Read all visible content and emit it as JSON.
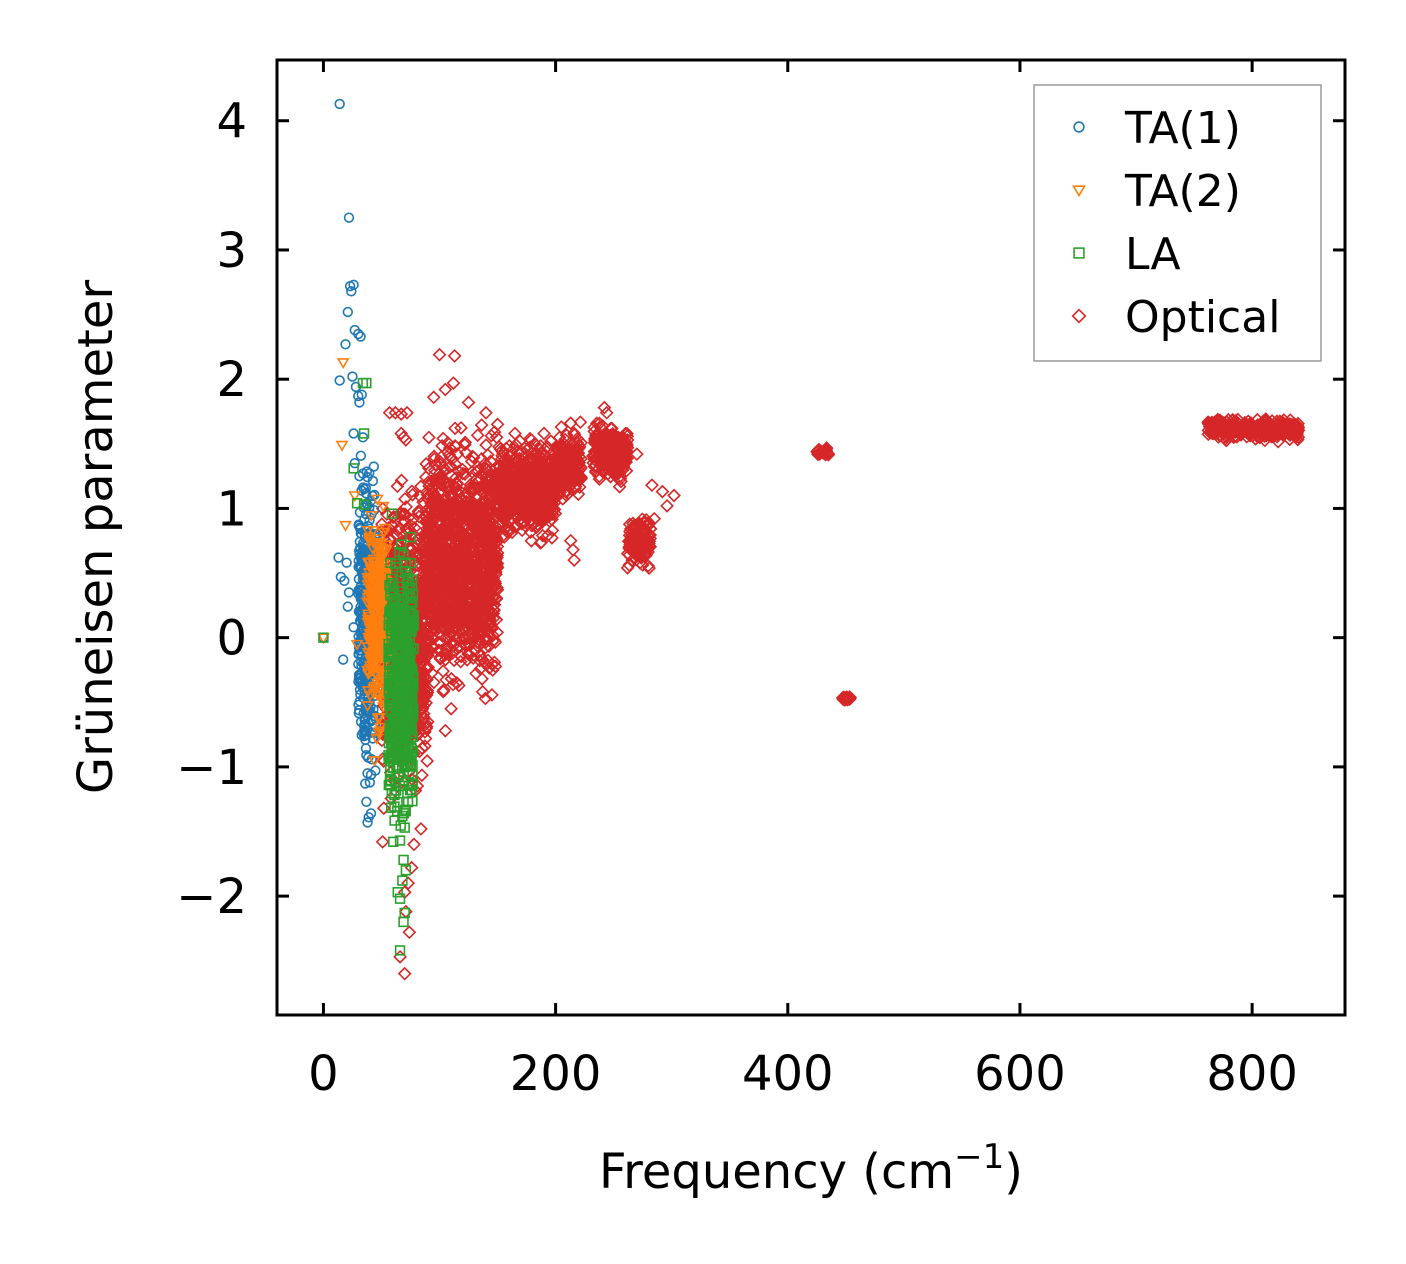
{
  "chart_data": {
    "type": "scatter",
    "title": "",
    "xlabel": "Frequency (cm",
    "xlabel_sup": "−1",
    "xlabel_end": ")",
    "ylabel": "Grüneisen parameter",
    "xlim": [
      -40,
      880
    ],
    "ylim": [
      -2.92,
      4.47
    ],
    "xticks": [
      0,
      200,
      400,
      600,
      800
    ],
    "xtick_labels": [
      "0",
      "200",
      "400",
      "600",
      "800"
    ],
    "yticks": [
      -2,
      -1,
      0,
      1,
      2,
      3,
      4
    ],
    "ytick_labels": [
      "−2",
      "−1",
      "0",
      "1",
      "2",
      "3",
      "4"
    ],
    "grid": false,
    "legend_position": "top-right",
    "series": [
      {
        "name": "TA(1)",
        "marker": "circle",
        "color": "#1f77b4",
        "points": [
          [
            0,
            0
          ],
          [
            14,
            4.13
          ],
          [
            22,
            3.25
          ],
          [
            23,
            2.72
          ],
          [
            24,
            2.68
          ],
          [
            26,
            2.73
          ],
          [
            21,
            2.52
          ],
          [
            19,
            2.27
          ],
          [
            27,
            2.38
          ],
          [
            30,
            2.35
          ],
          [
            32,
            2.33
          ],
          [
            25,
            2.02
          ],
          [
            14,
            1.99
          ],
          [
            28,
            1.94
          ],
          [
            30,
            1.87
          ],
          [
            31,
            1.82
          ],
          [
            33,
            1.88
          ],
          [
            26,
            1.58
          ],
          [
            34,
            1.55
          ],
          [
            27,
            1.35
          ],
          [
            31,
            1.25
          ],
          [
            35,
            1.15
          ],
          [
            13,
            0.62
          ],
          [
            20,
            0.58
          ],
          [
            15,
            0.47
          ],
          [
            18,
            0.44
          ],
          [
            22,
            0.35
          ],
          [
            21,
            0.24
          ],
          [
            17,
            -0.17
          ],
          [
            26,
            0.08
          ],
          [
            33,
            -0.35
          ],
          [
            35,
            -0.68
          ],
          [
            37,
            -0.91
          ],
          [
            38,
            -1.05
          ],
          [
            40,
            -1.12
          ],
          [
            37,
            -1.27
          ],
          [
            38,
            -1.43
          ],
          [
            39,
            -1.39
          ],
          [
            41,
            -1.36
          ]
        ],
        "dense_band": {
          "x_range": [
            30,
            45
          ],
          "y_range": [
            -1.2,
            1.5
          ],
          "count": 420
        }
      },
      {
        "name": "TA(2)",
        "marker": "triangle-down",
        "color": "#ff7f0e",
        "points": [
          [
            0,
            0
          ],
          [
            17,
            2.13
          ],
          [
            16,
            1.49
          ],
          [
            19,
            0.87
          ],
          [
            27,
            1.1
          ],
          [
            29,
            -0.05
          ],
          [
            44,
            -0.95
          ],
          [
            46,
            -0.78
          ],
          [
            49,
            -0.72
          ],
          [
            47,
            -0.62
          ]
        ],
        "dense_band": {
          "x_range": [
            38,
            55
          ],
          "y_range": [
            -0.9,
            1.2
          ],
          "count": 320
        }
      },
      {
        "name": "LA",
        "marker": "square",
        "color": "#2ca02c",
        "points": [
          [
            0,
            0
          ],
          [
            34,
            1.97
          ],
          [
            37,
            1.97
          ],
          [
            35,
            1.58
          ],
          [
            26,
            1.31
          ],
          [
            29,
            1.04
          ],
          [
            35,
            1.03
          ],
          [
            69,
            0.64
          ],
          [
            71,
            0.58
          ],
          [
            67,
            0.72
          ],
          [
            59,
            0.96
          ],
          [
            68,
            -1.38
          ],
          [
            70,
            -1.47
          ],
          [
            66,
            -1.57
          ],
          [
            69,
            -1.72
          ],
          [
            71,
            -1.8
          ],
          [
            66,
            -2.02
          ],
          [
            64,
            -1.97
          ],
          [
            68,
            -1.88
          ],
          [
            70,
            -2.13
          ],
          [
            69,
            -2.2
          ],
          [
            66,
            -2.42
          ]
        ],
        "dense_band": {
          "x_range": [
            56,
            78
          ],
          "y_range": [
            -1.7,
            0.9
          ],
          "count": 520
        }
      },
      {
        "name": "Optical",
        "marker": "diamond",
        "color": "#d62728",
        "points": [
          [
            100,
            2.19
          ],
          [
            113,
            2.18
          ],
          [
            57,
            1.74
          ],
          [
            62,
            1.74
          ],
          [
            67,
            1.73
          ],
          [
            72,
            1.74
          ],
          [
            67,
            1.58
          ],
          [
            69,
            1.55
          ],
          [
            71,
            1.53
          ],
          [
            95,
            1.86
          ],
          [
            105,
            1.92
          ],
          [
            112,
            1.97
          ],
          [
            125,
            1.82
          ],
          [
            140,
            1.74
          ],
          [
            150,
            1.65
          ],
          [
            165,
            1.58
          ],
          [
            178,
            1.54
          ],
          [
            190,
            1.58
          ],
          [
            205,
            1.63
          ],
          [
            213,
            1.66
          ],
          [
            242,
            1.78
          ],
          [
            244,
            1.74
          ],
          [
            254,
            1.55
          ],
          [
            262,
            1.47
          ],
          [
            270,
            1.42
          ],
          [
            283,
            1.18
          ],
          [
            292,
            1.13
          ],
          [
            302,
            1.1
          ],
          [
            296,
            1.02
          ],
          [
            285,
            0.92
          ],
          [
            277,
            0.72
          ],
          [
            266,
            0.6
          ],
          [
            262,
            0.54
          ],
          [
            213,
            0.75
          ],
          [
            215,
            0.68
          ],
          [
            216,
            0.6
          ],
          [
            52,
            -1.32
          ],
          [
            51,
            -1.58
          ],
          [
            84,
            -1.48
          ],
          [
            78,
            -1.6
          ],
          [
            76,
            -1.78
          ],
          [
            73,
            -1.9
          ],
          [
            70,
            -1.97
          ],
          [
            71,
            -2.12
          ],
          [
            74,
            -2.28
          ],
          [
            66,
            -2.47
          ],
          [
            70,
            -2.6
          ],
          [
            120,
            0.2
          ],
          [
            130,
            0.1
          ],
          [
            125,
            -0.05
          ],
          [
            115,
            -0.35
          ],
          [
            110,
            -0.55
          ],
          [
            105,
            -0.72
          ]
        ],
        "dense_regions": [
          {
            "x_range": [
              50,
              90
            ],
            "y_range": [
              -1.4,
              1.4
            ],
            "count": 900
          },
          {
            "x_range": [
              88,
              150
            ],
            "y_range": [
              -0.6,
              1.8
            ],
            "count": 1300
          },
          {
            "x_range": [
              150,
              200
            ],
            "y_range": [
              0.7,
              1.6
            ],
            "count": 650
          },
          {
            "x_range": [
              200,
              222
            ],
            "y_range": [
              1.0,
              1.7
            ],
            "count": 180
          },
          {
            "x_range": [
              232,
              262
            ],
            "y_range": [
              1.15,
              1.72
            ],
            "count": 240
          },
          {
            "x_range": [
              262,
              282
            ],
            "y_range": [
              0.5,
              1.0
            ],
            "count": 140
          },
          {
            "x_range": [
              425,
              435
            ],
            "y_range": [
              1.4,
              1.47
            ],
            "count": 30
          },
          {
            "x_range": [
              447,
              455
            ],
            "y_range": [
              -0.49,
              -0.45
            ],
            "count": 20
          },
          {
            "x_range": [
              762,
              840
            ],
            "y_range": [
              1.5,
              1.72
            ],
            "count": 320
          }
        ]
      }
    ]
  }
}
